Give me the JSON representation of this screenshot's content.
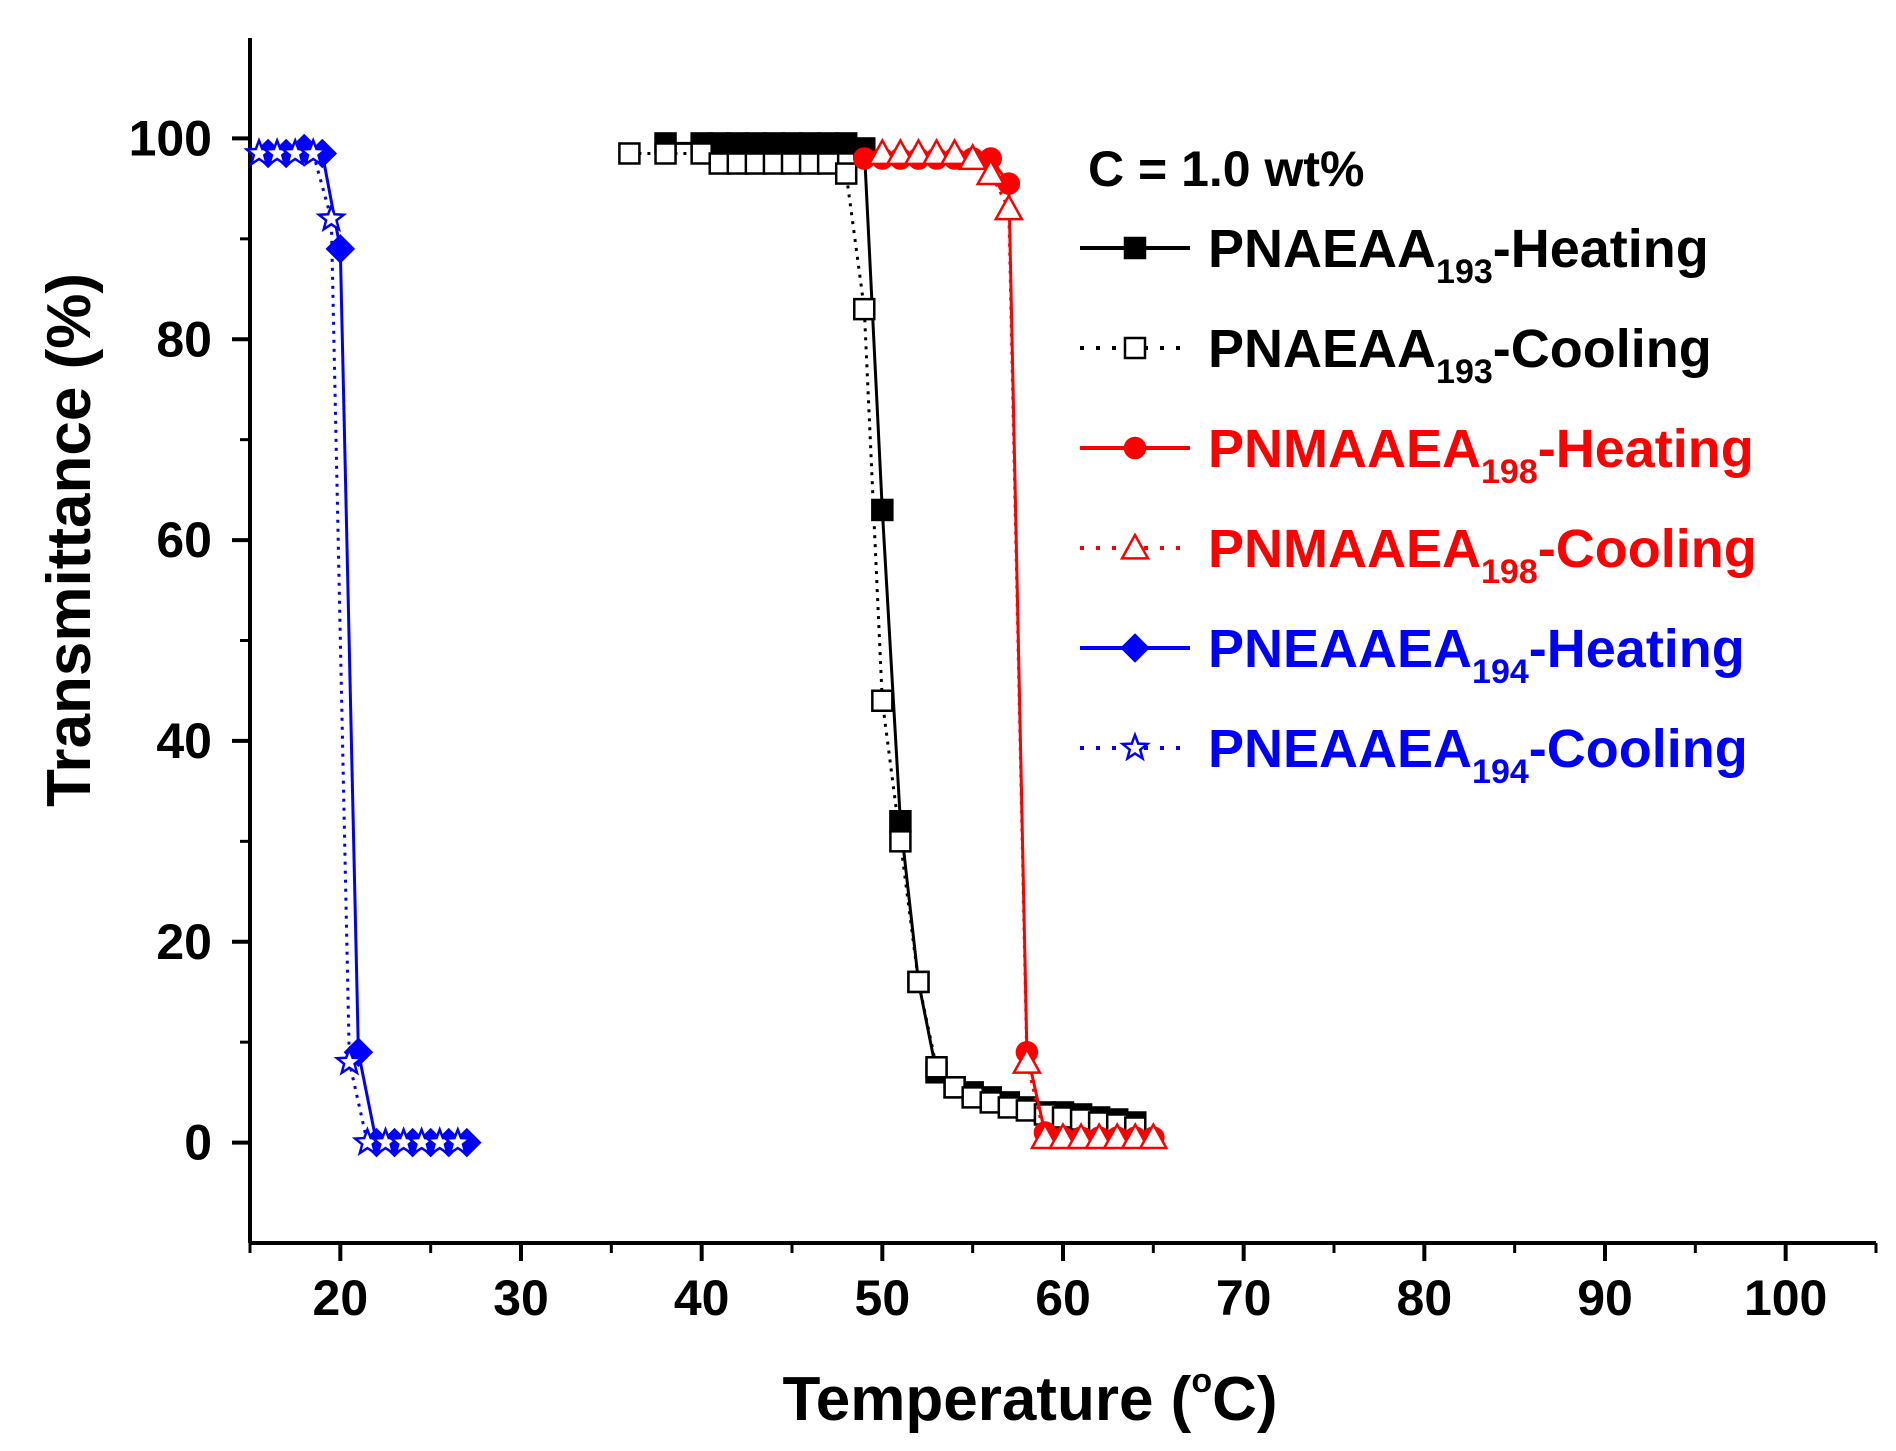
{
  "chart_data": {
    "type": "line",
    "xlabel": "Temperature (",
    "xlabel_degree": "o",
    "xlabel_unit": "C)",
    "ylabel": "Transmittance (%)",
    "xlim": [
      15,
      105
    ],
    "ylim": [
      -10,
      110
    ],
    "xticks": [
      20,
      30,
      40,
      50,
      60,
      70,
      80,
      90,
      100
    ],
    "yticks": [
      0,
      20,
      40,
      60,
      80,
      100
    ],
    "grid": false,
    "legend_position": "top-right",
    "annotation": "C = 1.0 wt%",
    "series": [
      {
        "name": "PNAEAA",
        "name_subscript": "193",
        "name_suffix": "-Heating",
        "color": "#000000",
        "line": "solid",
        "marker": "square-filled",
        "x": [
          38,
          40,
          41,
          42,
          43,
          44,
          45,
          46,
          47,
          48,
          49,
          50,
          51,
          52,
          53,
          54,
          55,
          56,
          57,
          58,
          59,
          60,
          61,
          62,
          63,
          64
        ],
        "y": [
          99.5,
          99.5,
          99.5,
          99.5,
          99.5,
          99.5,
          99.5,
          99.5,
          99.5,
          99.5,
          99,
          63,
          32,
          16,
          7,
          5.5,
          5,
          4.5,
          4,
          3.5,
          3,
          3,
          2.8,
          2.5,
          2.3,
          2
        ]
      },
      {
        "name": "PNAEAA",
        "name_subscript": "193",
        "name_suffix": "-Cooling",
        "color": "#000000",
        "line": "dotted",
        "marker": "square-open",
        "x": [
          36,
          38,
          40,
          41,
          42,
          43,
          44,
          45,
          46,
          47,
          48,
          49,
          50,
          51,
          52,
          53,
          54,
          55,
          56,
          57,
          58,
          59,
          60,
          61,
          62,
          63,
          64
        ],
        "y": [
          98.5,
          98.5,
          98.5,
          97.5,
          97.5,
          97.5,
          97.5,
          97.5,
          97.5,
          97.5,
          96.5,
          83,
          44,
          30,
          16,
          7.5,
          5.5,
          4.5,
          4,
          3.5,
          3.2,
          2.8,
          2.5,
          2.3,
          2,
          1.8,
          1.5
        ]
      },
      {
        "name": "PNMAAEA",
        "name_subscript": "198",
        "name_suffix": "-Heating",
        "color": "#ff0000",
        "line": "solid",
        "marker": "circle-filled",
        "x": [
          49,
          50,
          51,
          52,
          53,
          54,
          55,
          56,
          57,
          58,
          59,
          60,
          61,
          62,
          63,
          64,
          65
        ],
        "y": [
          98,
          98,
          98,
          98,
          98,
          98,
          98,
          98,
          95.5,
          9,
          1,
          0.5,
          0.5,
          0.5,
          0.5,
          0.5,
          0.5
        ]
      },
      {
        "name": "PNMAAEA",
        "name_subscript": "198",
        "name_suffix": "-Cooling",
        "color": "#ff0000",
        "line": "dotted",
        "marker": "triangle-open",
        "x": [
          50,
          51,
          52,
          53,
          54,
          55,
          56,
          57,
          58,
          59,
          60,
          61,
          62,
          63,
          64,
          65
        ],
        "y": [
          98.5,
          98.5,
          98.5,
          98.5,
          98.5,
          98,
          96.5,
          93,
          8,
          0.5,
          0.5,
          0.5,
          0.5,
          0.5,
          0.5,
          0.5
        ]
      },
      {
        "name": "PNEAAEA",
        "name_subscript": "194",
        "name_suffix": "-Heating",
        "color": "#0000ff",
        "line": "solid",
        "marker": "diamond-filled",
        "x": [
          16,
          17,
          18,
          19,
          20,
          21,
          22,
          23,
          24,
          25,
          26,
          27
        ],
        "y": [
          98.5,
          98.5,
          99,
          98.5,
          89,
          9,
          0,
          0,
          0,
          0,
          0,
          0
        ]
      },
      {
        "name": "PNEAAEA",
        "name_subscript": "194",
        "name_suffix": "-Cooling",
        "color": "#0000ff",
        "line": "dotted",
        "marker": "star-open",
        "x": [
          15.5,
          16.5,
          17.5,
          18.5,
          19.5,
          20.5,
          21.5,
          22.5,
          23.5,
          24.5,
          25.5,
          26.5
        ],
        "y": [
          98.5,
          98.5,
          98.5,
          98.5,
          92,
          8,
          0,
          0,
          0,
          0,
          0,
          0
        ]
      }
    ]
  }
}
